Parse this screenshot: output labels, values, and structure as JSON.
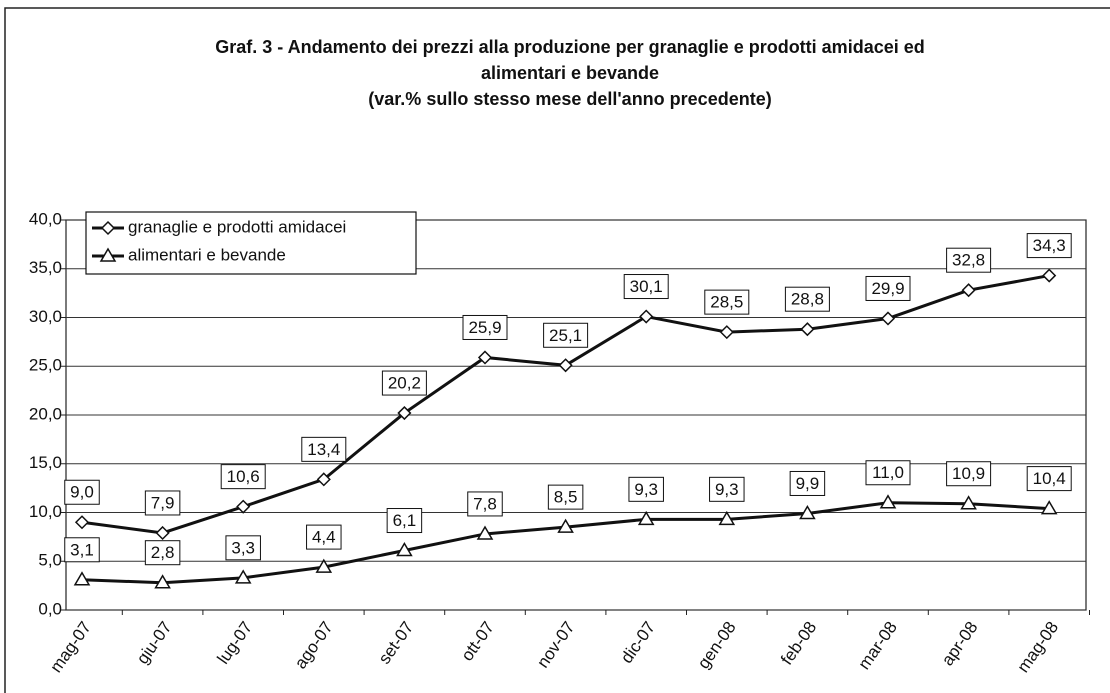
{
  "chart_data": {
    "type": "line",
    "title": [
      "Graf. 3 - Andamento dei prezzi alla produzione per granaglie e prodotti amidacei ed",
      "alimentari e bevande"
    ],
    "subtitle": "(var.% sullo stesso mese dell'anno precedente)",
    "categories": [
      "mag-07",
      "giu-07",
      "lug-07",
      "ago-07",
      "set-07",
      "ott-07",
      "nov-07",
      "dic-07",
      "gen-08",
      "feb-08",
      "mar-08",
      "apr-08",
      "mag-08"
    ],
    "series": [
      {
        "name": "granaglie e prodotti amidacei",
        "color": "#111111",
        "marker": "diamond",
        "values": [
          9.0,
          7.9,
          10.6,
          13.4,
          20.2,
          25.9,
          25.1,
          30.1,
          28.5,
          28.8,
          29.9,
          32.8,
          34.3
        ],
        "value_labels": [
          "9,0",
          "7,9",
          "10,6",
          "13,4",
          "20,2",
          "25,9",
          "25,1",
          "30,1",
          "28,5",
          "28,8",
          "29,9",
          "32,8",
          "34,3"
        ]
      },
      {
        "name": "alimentari e bevande",
        "color": "#111111",
        "marker": "triangle",
        "values": [
          3.1,
          2.8,
          3.3,
          4.4,
          6.1,
          7.8,
          8.5,
          9.3,
          9.3,
          9.9,
          11.0,
          10.9,
          10.4
        ],
        "value_labels": [
          "3,1",
          "2,8",
          "3,3",
          "4,4",
          "6,1",
          "7,8",
          "8,5",
          "9,3",
          "9,3",
          "9,9",
          "11,0",
          "10,9",
          "10,4"
        ]
      }
    ],
    "ylim": [
      0,
      40
    ],
    "yticks": [
      {
        "value": 0,
        "label": "0,0"
      },
      {
        "value": 5,
        "label": "5,0"
      },
      {
        "value": 10,
        "label": "10,0"
      },
      {
        "value": 15,
        "label": "15,0"
      },
      {
        "value": 20,
        "label": "20,0"
      },
      {
        "value": 25,
        "label": "25,0"
      },
      {
        "value": 30,
        "label": "30,0"
      },
      {
        "value": 35,
        "label": "35,0"
      },
      {
        "value": 40,
        "label": "40,0"
      }
    ],
    "grid": true,
    "legend": "top-left"
  }
}
